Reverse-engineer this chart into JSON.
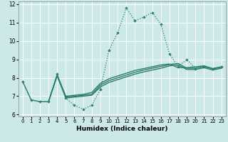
{
  "xlabel": "Humidex (Indice chaleur)",
  "xlim": [
    -0.5,
    23.5
  ],
  "ylim": [
    5.9,
    12.15
  ],
  "yticks": [
    6,
    7,
    8,
    9,
    10,
    11,
    12
  ],
  "xticks": [
    0,
    1,
    2,
    3,
    4,
    5,
    6,
    7,
    8,
    9,
    10,
    11,
    12,
    13,
    14,
    15,
    16,
    17,
    18,
    19,
    20,
    21,
    22,
    23
  ],
  "bg_color": "#cce8e8",
  "line_color": "#2e7d6e",
  "grid_color": "#ffffff",
  "line_dotted": {
    "x": [
      0,
      1,
      2,
      3,
      4,
      5,
      6,
      7,
      8,
      9,
      10,
      11,
      12,
      13,
      14,
      15,
      16,
      17,
      18,
      19,
      20,
      21,
      22,
      23
    ],
    "y": [
      7.8,
      6.8,
      6.7,
      6.7,
      8.2,
      6.9,
      6.5,
      6.3,
      6.5,
      7.35,
      9.5,
      10.45,
      11.8,
      11.1,
      11.3,
      11.55,
      10.9,
      9.3,
      8.6,
      9.0,
      8.5,
      8.6,
      8.5,
      8.6
    ]
  },
  "line_solid1": {
    "x": [
      0,
      1,
      2,
      3,
      4,
      5,
      6,
      7,
      8,
      9,
      10,
      11,
      12,
      13,
      14,
      15,
      16,
      17,
      18,
      19,
      20,
      21,
      22,
      23
    ],
    "y": [
      7.8,
      6.8,
      6.7,
      6.7,
      8.15,
      7.0,
      7.05,
      7.1,
      7.2,
      7.7,
      7.95,
      8.1,
      8.25,
      8.4,
      8.5,
      8.6,
      8.7,
      8.75,
      8.55,
      8.55,
      8.6,
      8.65,
      8.5,
      8.6
    ]
  },
  "line_solid2": {
    "x": [
      3,
      4,
      5,
      6,
      7,
      8,
      9,
      10,
      11,
      12,
      13,
      14,
      15,
      16,
      17,
      18,
      19,
      20,
      21,
      22,
      23
    ],
    "y": [
      6.7,
      8.15,
      6.95,
      7.0,
      7.05,
      7.1,
      7.6,
      7.85,
      8.0,
      8.15,
      8.3,
      8.42,
      8.52,
      8.62,
      8.72,
      8.78,
      8.52,
      8.52,
      8.62,
      8.48,
      8.58
    ]
  },
  "line_solid3": {
    "x": [
      3,
      4,
      5,
      6,
      7,
      8,
      9,
      10,
      11,
      12,
      13,
      14,
      15,
      16,
      17,
      18,
      19,
      20,
      21,
      22,
      23
    ],
    "y": [
      6.7,
      8.1,
      6.9,
      6.95,
      7.0,
      7.05,
      7.5,
      7.75,
      7.9,
      8.05,
      8.2,
      8.32,
      8.42,
      8.52,
      8.65,
      8.7,
      8.45,
      8.45,
      8.55,
      8.42,
      8.52
    ]
  }
}
